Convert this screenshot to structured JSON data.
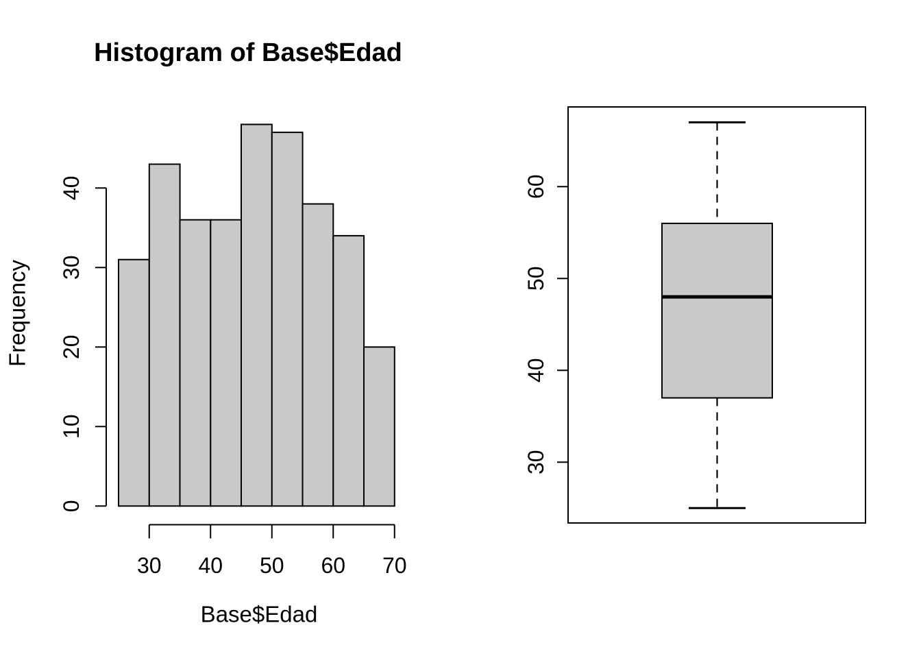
{
  "figure": {
    "background_color": "#ffffff",
    "foreground_color": "#000000",
    "fill_gray": "#c9c9c9"
  },
  "chart_data": [
    {
      "type": "bar",
      "subtype": "histogram",
      "title": "Histogram of Base$Edad",
      "xlabel": "Base$Edad",
      "ylabel": "Frequency",
      "bin_edges": [
        25,
        30,
        35,
        40,
        45,
        50,
        55,
        60,
        65,
        70
      ],
      "counts": [
        31,
        43,
        36,
        36,
        48,
        47,
        38,
        34,
        20
      ],
      "x_ticks": [
        30,
        40,
        50,
        60,
        70
      ],
      "y_ticks": [
        0,
        10,
        20,
        30,
        40
      ],
      "xlim": [
        25,
        70
      ],
      "ylim": [
        0,
        48
      ],
      "grid": false,
      "legend": "none",
      "bar_fill": "#c9c9c9",
      "bar_stroke": "#000000"
    },
    {
      "type": "boxplot",
      "orientation": "vertical",
      "y_ticks": [
        30,
        40,
        50,
        60
      ],
      "ylim": [
        25,
        67
      ],
      "stats": {
        "min": 25,
        "q1": 37,
        "median": 48,
        "q3": 56,
        "max": 67
      },
      "whisker_style": "dashed",
      "box_fill": "#c9c9c9",
      "box_stroke": "#000000",
      "grid": false
    }
  ]
}
